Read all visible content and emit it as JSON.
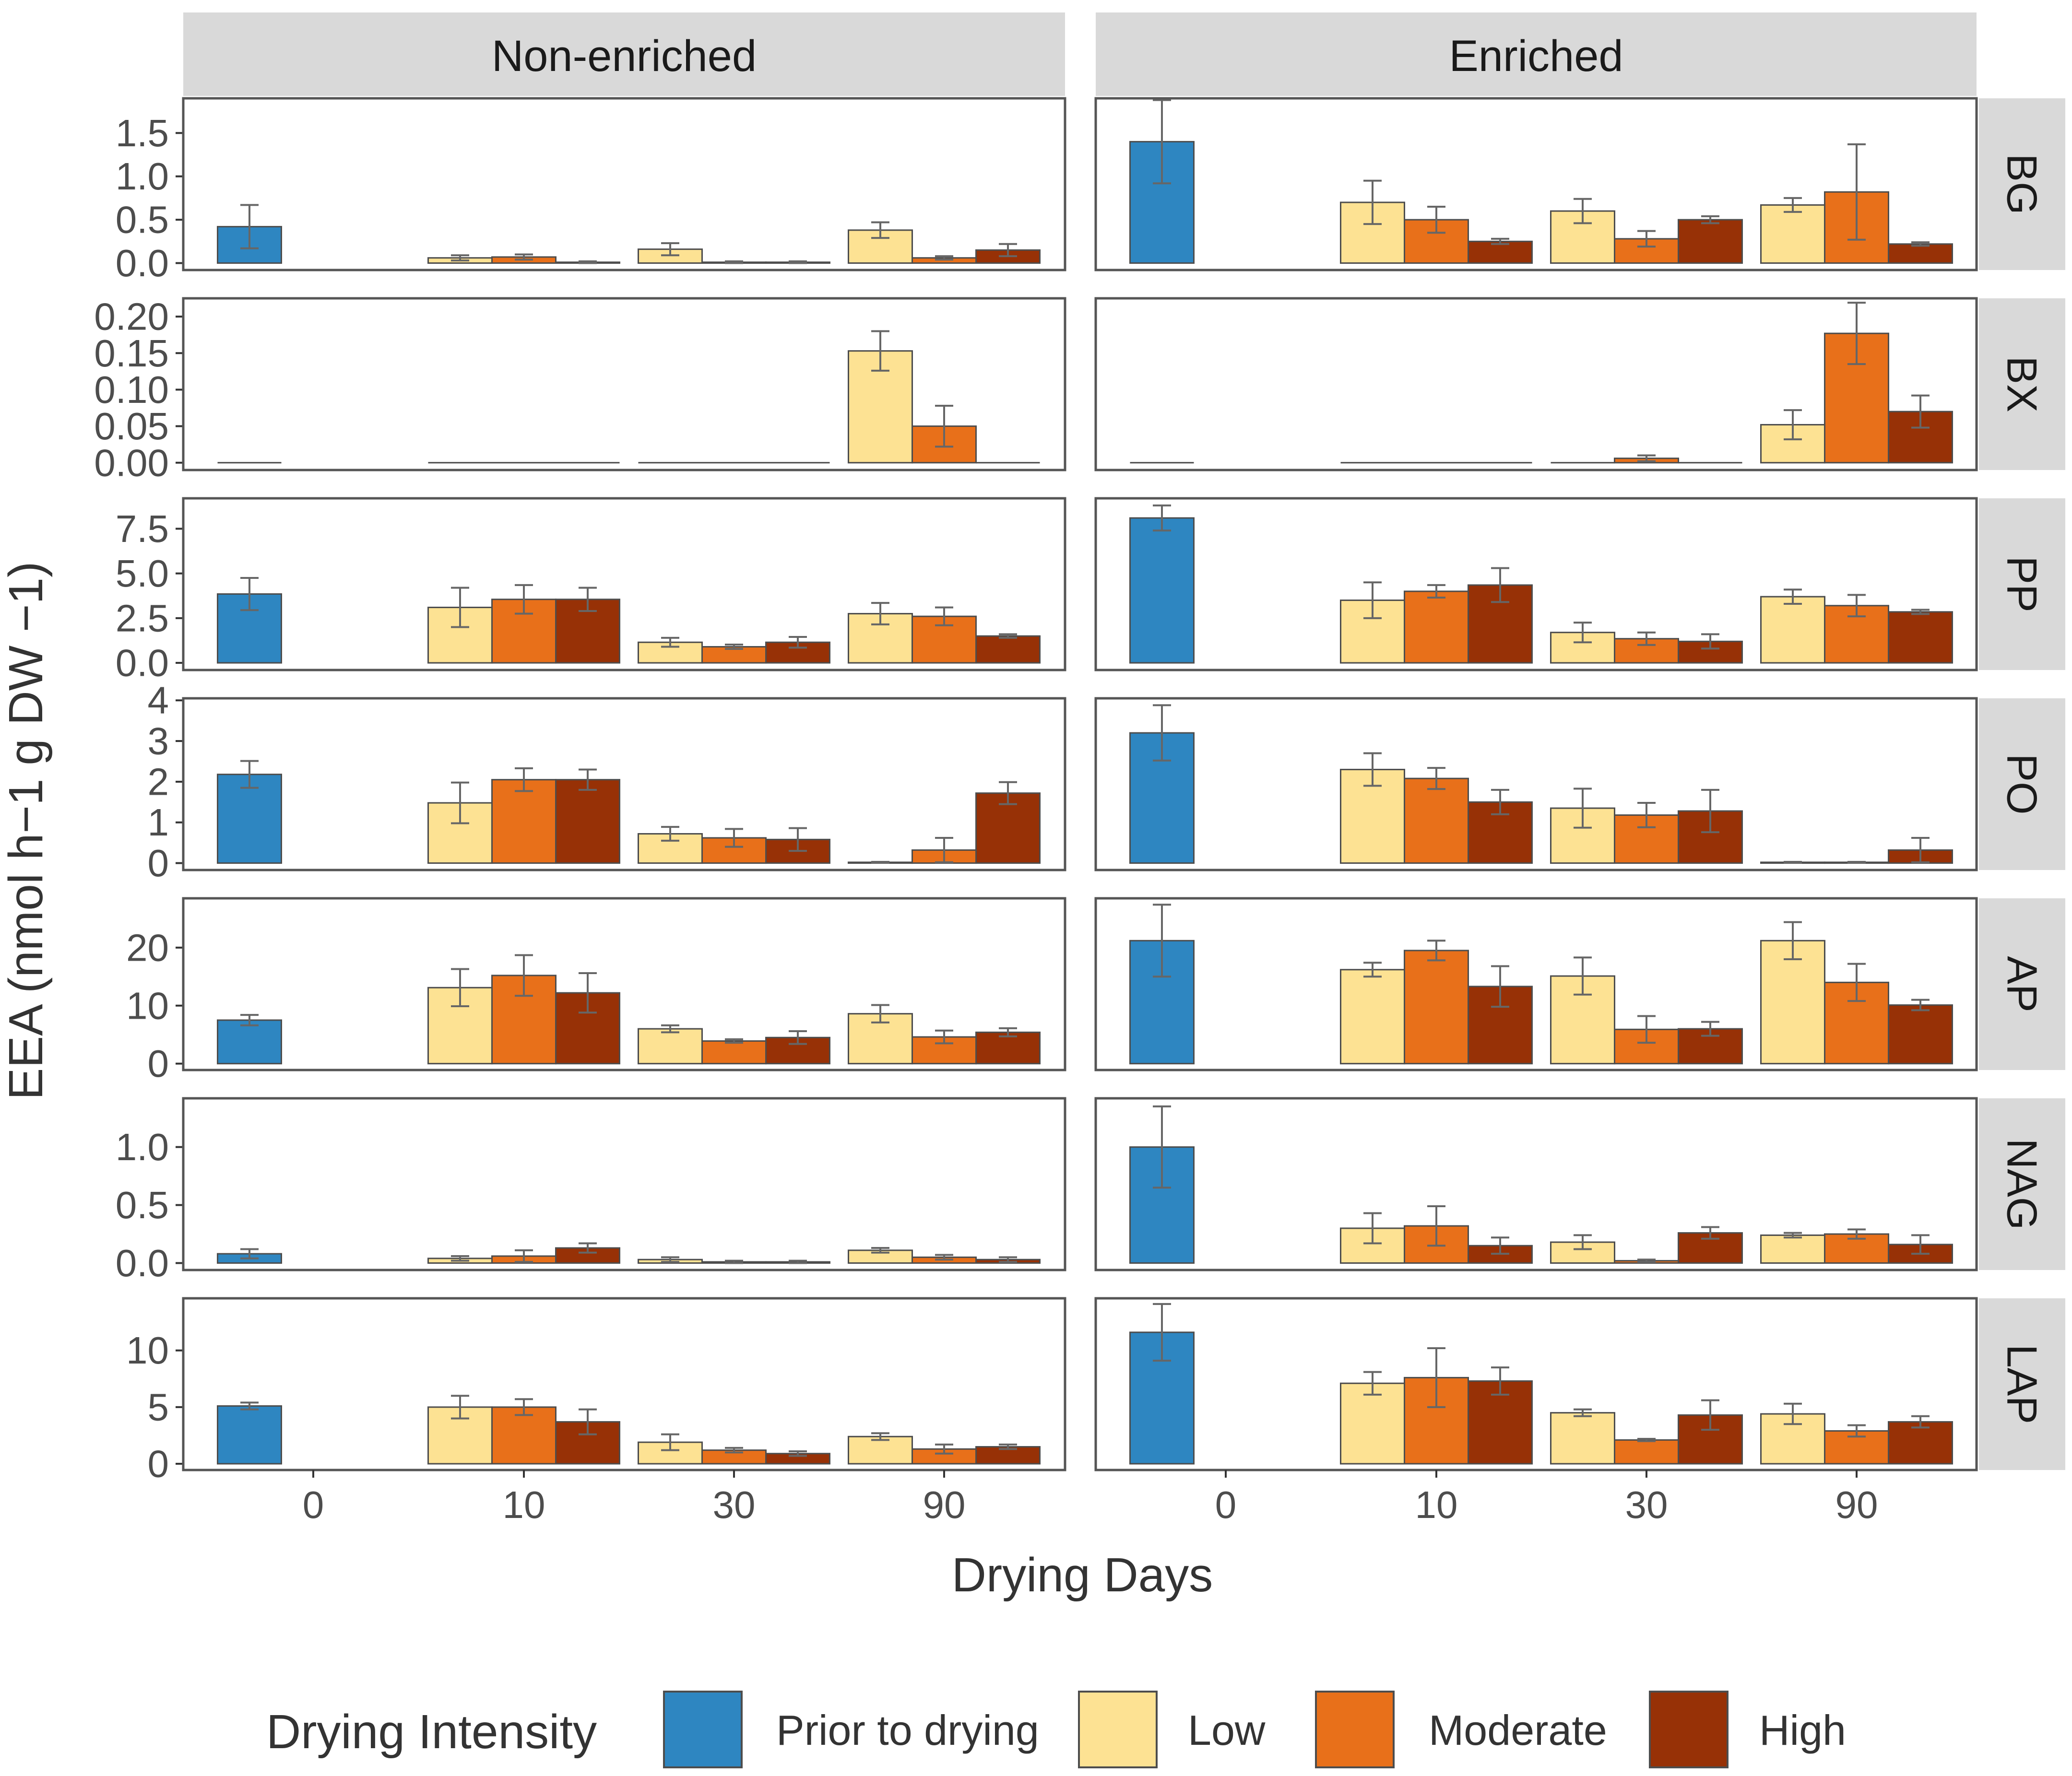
{
  "colors": {
    "prior": "#2e86c1",
    "low": "#fde293",
    "moderate": "#e8701a",
    "high": "#973106",
    "strip_bg": "#d9d9d9",
    "panel_border": "#555555",
    "bar_stroke": "#4d4d4d",
    "errorbar": "#666666",
    "text": "#4d4d4d"
  },
  "chart_data": {
    "type": "bar",
    "title": "",
    "xlabel": "Drying Days",
    "ylabel": "EEA (nmol h−1 g DW −1)",
    "categories": [
      "0",
      "10",
      "30",
      "90"
    ],
    "columns": [
      "Non-enriched",
      "Enriched"
    ],
    "legend": {
      "title": "Drying Intensity",
      "position": "bottom",
      "items": [
        {
          "key": "prior",
          "label": "Prior to drying"
        },
        {
          "key": "low",
          "label": "Low"
        },
        {
          "key": "moderate",
          "label": "Moderate"
        },
        {
          "key": "high",
          "label": "High"
        }
      ]
    },
    "rows": [
      {
        "name": "BG",
        "ylim": [
          -0.08,
          1.9
        ],
        "ticks": [
          0,
          0.5,
          1,
          1.5
        ],
        "tick_labels": [
          "0.0",
          "0.5",
          "1.0",
          "1.5"
        ],
        "panels": [
          {
            "prior": [
              0.42,
              0.25
            ],
            "days": {
              "10": [
                [
                  0.06,
                  0.03
                ],
                [
                  0.07,
                  0.03
                ],
                [
                  0.01,
                  0.01
                ]
              ],
              "30": [
                [
                  0.16,
                  0.07
                ],
                [
                  0.01,
                  0.01
                ],
                [
                  0.01,
                  0.01
                ]
              ],
              "90": [
                [
                  0.38,
                  0.09
                ],
                [
                  0.06,
                  0.02
                ],
                [
                  0.15,
                  0.07
                ]
              ]
            }
          },
          {
            "prior": [
              1.4,
              0.48
            ],
            "days": {
              "10": [
                [
                  0.7,
                  0.25
                ],
                [
                  0.5,
                  0.15
                ],
                [
                  0.25,
                  0.03
                ]
              ],
              "30": [
                [
                  0.6,
                  0.14
                ],
                [
                  0.28,
                  0.09
                ],
                [
                  0.5,
                  0.04
                ]
              ],
              "90": [
                [
                  0.67,
                  0.08
                ],
                [
                  0.82,
                  0.55
                ],
                [
                  0.22,
                  0.02
                ]
              ]
            }
          }
        ]
      },
      {
        "name": "BX",
        "ylim": [
          -0.01,
          0.225
        ],
        "ticks": [
          0,
          0.05,
          0.1,
          0.15,
          0.2
        ],
        "tick_labels": [
          "0.00",
          "0.05",
          "0.10",
          "0.15",
          "0.20"
        ],
        "panels": [
          {
            "prior": [
              0,
              0
            ],
            "days": {
              "10": [
                [
                  0,
                  0
                ],
                [
                  0,
                  0
                ],
                [
                  0,
                  0
                ]
              ],
              "30": [
                [
                  0,
                  0
                ],
                [
                  0,
                  0
                ],
                [
                  0,
                  0
                ]
              ],
              "90": [
                [
                  0.153,
                  0.027
                ],
                [
                  0.05,
                  0.028
                ],
                [
                  0,
                  0
                ]
              ]
            }
          },
          {
            "prior": [
              0,
              0
            ],
            "days": {
              "10": [
                [
                  0,
                  0
                ],
                [
                  0,
                  0
                ],
                [
                  0,
                  0
                ]
              ],
              "30": [
                [
                  0,
                  0
                ],
                [
                  0.006,
                  0.004
                ],
                [
                  0,
                  0
                ]
              ],
              "90": [
                [
                  0.052,
                  0.02
                ],
                [
                  0.177,
                  0.042
                ],
                [
                  0.07,
                  0.022
                ]
              ]
            }
          }
        ]
      },
      {
        "name": "PP",
        "ylim": [
          -0.4,
          9.2
        ],
        "ticks": [
          0,
          2.5,
          5,
          7.5
        ],
        "tick_labels": [
          "0.0",
          "2.5",
          "5.0",
          "7.5"
        ],
        "panels": [
          {
            "prior": [
              3.85,
              0.9
            ],
            "days": {
              "10": [
                [
                  3.1,
                  1.1
                ],
                [
                  3.55,
                  0.8
                ],
                [
                  3.55,
                  0.65
                ]
              ],
              "30": [
                [
                  1.15,
                  0.25
                ],
                [
                  0.9,
                  0.12
                ],
                [
                  1.15,
                  0.3
                ]
              ],
              "90": [
                [
                  2.75,
                  0.6
                ],
                [
                  2.6,
                  0.5
                ],
                [
                  1.5,
                  0.1
                ]
              ]
            }
          },
          {
            "prior": [
              8.1,
              0.7
            ],
            "days": {
              "10": [
                [
                  3.5,
                  1.0
                ],
                [
                  4.0,
                  0.35
                ],
                [
                  4.35,
                  0.95
                ]
              ],
              "30": [
                [
                  1.7,
                  0.55
                ],
                [
                  1.35,
                  0.35
                ],
                [
                  1.2,
                  0.4
                ]
              ],
              "90": [
                [
                  3.7,
                  0.4
                ],
                [
                  3.2,
                  0.6
                ],
                [
                  2.85,
                  0.12
                ]
              ]
            }
          }
        ]
      },
      {
        "name": "PO",
        "ylim": [
          -0.17,
          4.05
        ],
        "ticks": [
          0,
          1,
          2,
          3,
          4
        ],
        "tick_labels": [
          "0",
          "1",
          "2",
          "3",
          "4"
        ],
        "panels": [
          {
            "prior": [
              2.18,
              0.33
            ],
            "days": {
              "10": [
                [
                  1.48,
                  0.5
                ],
                [
                  2.05,
                  0.28
                ],
                [
                  2.05,
                  0.25
                ]
              ],
              "30": [
                [
                  0.72,
                  0.17
                ],
                [
                  0.62,
                  0.22
                ],
                [
                  0.58,
                  0.28
                ]
              ],
              "90": [
                [
                  0.02,
                  0.01
                ],
                [
                  0.32,
                  0.3
                ],
                [
                  1.72,
                  0.27
                ]
              ]
            }
          },
          {
            "prior": [
              3.2,
              0.68
            ],
            "days": {
              "10": [
                [
                  2.3,
                  0.4
                ],
                [
                  2.08,
                  0.26
                ],
                [
                  1.5,
                  0.3
                ]
              ],
              "30": [
                [
                  1.35,
                  0.48
                ],
                [
                  1.18,
                  0.3
                ],
                [
                  1.28,
                  0.52
                ]
              ],
              "90": [
                [
                  0.02,
                  0.01
                ],
                [
                  0.02,
                  0.01
                ],
                [
                  0.32,
                  0.3
                ]
              ]
            }
          }
        ]
      },
      {
        "name": "AP",
        "ylim": [
          -1.1,
          28.5
        ],
        "ticks": [
          0,
          10,
          20
        ],
        "tick_labels": [
          "0",
          "10",
          "20"
        ],
        "panels": [
          {
            "prior": [
              7.5,
              0.9
            ],
            "days": {
              "10": [
                [
                  13.1,
                  3.2
                ],
                [
                  15.2,
                  3.5
                ],
                [
                  12.2,
                  3.4
                ]
              ],
              "30": [
                [
                  6.0,
                  0.6
                ],
                [
                  3.9,
                  0.3
                ],
                [
                  4.5,
                  1.1
                ]
              ],
              "90": [
                [
                  8.6,
                  1.5
                ],
                [
                  4.6,
                  1.1
                ],
                [
                  5.4,
                  0.7
                ]
              ]
            }
          },
          {
            "prior": [
              21.2,
              6.2
            ],
            "days": {
              "10": [
                [
                  16.2,
                  1.2
                ],
                [
                  19.5,
                  1.7
                ],
                [
                  13.3,
                  3.5
                ]
              ],
              "30": [
                [
                  15.1,
                  3.2
                ],
                [
                  5.9,
                  2.3
                ],
                [
                  6.0,
                  1.2
                ]
              ],
              "90": [
                [
                  21.2,
                  3.2
                ],
                [
                  14.0,
                  3.2
                ],
                [
                  10.1,
                  0.9
                ]
              ]
            }
          }
        ]
      },
      {
        "name": "NAG",
        "ylim": [
          -0.06,
          1.42
        ],
        "ticks": [
          0,
          0.5,
          1
        ],
        "tick_labels": [
          "0.0",
          "0.5",
          "1.0"
        ],
        "panels": [
          {
            "prior": [
              0.08,
              0.04
            ],
            "days": {
              "10": [
                [
                  0.04,
                  0.02
                ],
                [
                  0.06,
                  0.05
                ],
                [
                  0.13,
                  0.04
                ]
              ],
              "30": [
                [
                  0.03,
                  0.02
                ],
                [
                  0.01,
                  0.01
                ],
                [
                  0.01,
                  0.01
                ]
              ],
              "90": [
                [
                  0.11,
                  0.02
                ],
                [
                  0.05,
                  0.02
                ],
                [
                  0.03,
                  0.02
                ]
              ]
            }
          },
          {
            "prior": [
              1.0,
              0.35
            ],
            "days": {
              "10": [
                [
                  0.3,
                  0.13
                ],
                [
                  0.32,
                  0.17
                ],
                [
                  0.15,
                  0.07
                ]
              ],
              "30": [
                [
                  0.18,
                  0.06
                ],
                [
                  0.02,
                  0.01
                ],
                [
                  0.26,
                  0.05
                ]
              ],
              "90": [
                [
                  0.24,
                  0.02
                ],
                [
                  0.25,
                  0.04
                ],
                [
                  0.16,
                  0.08
                ]
              ]
            }
          }
        ]
      },
      {
        "name": "LAP",
        "ylim": [
          -0.55,
          14.6
        ],
        "ticks": [
          0,
          5,
          10
        ],
        "tick_labels": [
          "0",
          "5",
          "10"
        ],
        "panels": [
          {
            "prior": [
              5.1,
              0.3
            ],
            "days": {
              "10": [
                [
                  5.0,
                  1.0
                ],
                [
                  5.0,
                  0.7
                ],
                [
                  3.7,
                  1.1
                ]
              ],
              "30": [
                [
                  1.9,
                  0.7
                ],
                [
                  1.2,
                  0.2
                ],
                [
                  0.9,
                  0.2
                ]
              ],
              "90": [
                [
                  2.4,
                  0.3
                ],
                [
                  1.3,
                  0.4
                ],
                [
                  1.5,
                  0.2
                ]
              ]
            }
          },
          {
            "prior": [
              11.6,
              2.5
            ],
            "days": {
              "10": [
                [
                  7.1,
                  1.0
                ],
                [
                  7.6,
                  2.6
                ],
                [
                  7.3,
                  1.2
                ]
              ],
              "30": [
                [
                  4.5,
                  0.3
                ],
                [
                  2.1,
                  0.1
                ],
                [
                  4.3,
                  1.3
                ]
              ],
              "90": [
                [
                  4.4,
                  0.9
                ],
                [
                  2.9,
                  0.5
                ],
                [
                  3.7,
                  0.5
                ]
              ]
            }
          }
        ]
      }
    ]
  }
}
